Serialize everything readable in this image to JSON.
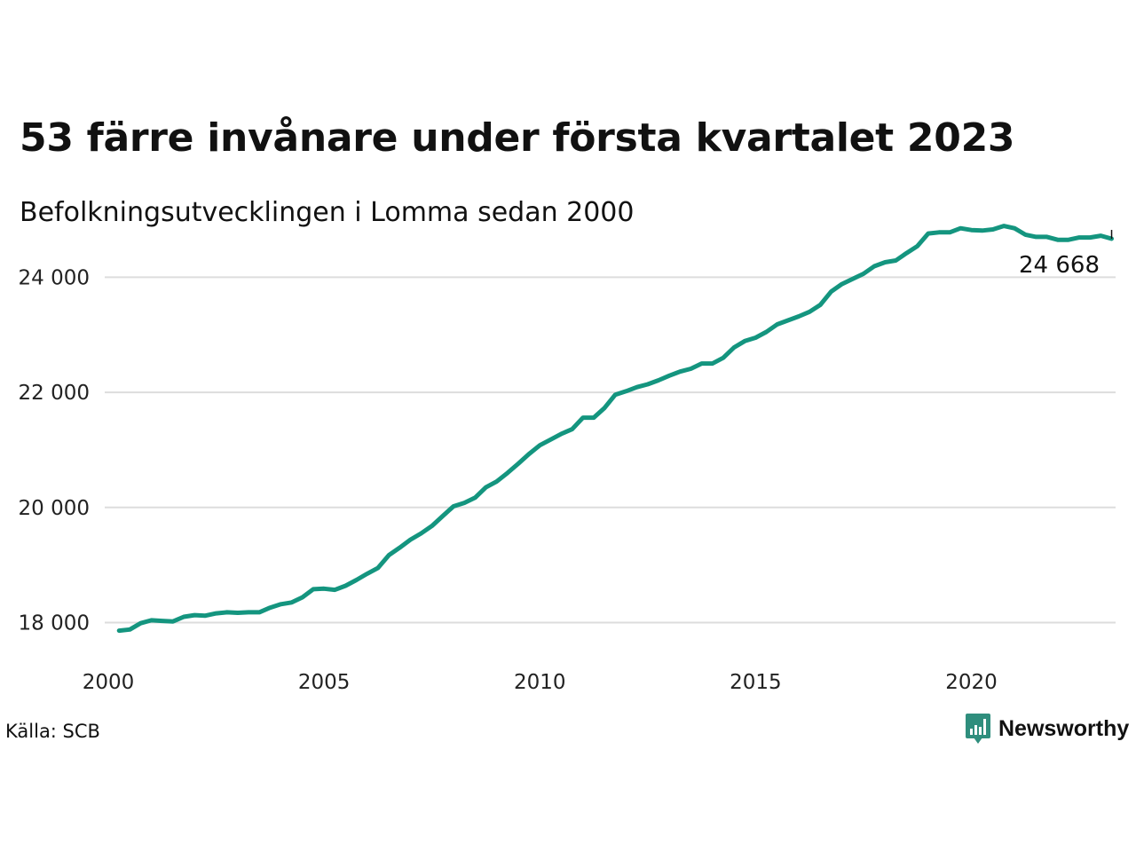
{
  "title": "53 färre invånare under första kvartalet 2023",
  "subtitle": "Befolkningsutvecklingen i Lomma sedan 2000",
  "source": "Källa: SCB",
  "brand": {
    "name": "Newsworthy",
    "color": "#2f8e7d",
    "icon": "newsworthy-logo-icon"
  },
  "end_label": "24 668",
  "colors": {
    "line": "#14957f",
    "grid": "#dddddd"
  },
  "chart_data": {
    "type": "line",
    "title": "53 färre invånare under första kvartalet 2023",
    "subtitle": "Befolkningsutvecklingen i Lomma sedan 2000",
    "xlabel": "",
    "ylabel": "",
    "xlim": [
      2000,
      2024
    ],
    "ylim": [
      17800,
      25100
    ],
    "x_ticks": [
      2000,
      2005,
      2010,
      2015,
      2020
    ],
    "x_tick_labels": [
      "2000",
      "2005",
      "2010",
      "2015",
      "2020"
    ],
    "y_ticks": [
      18000,
      20000,
      22000,
      24000
    ],
    "y_tick_labels": [
      "18 000",
      "20 000",
      "22 000",
      "24 000"
    ],
    "grid": "horizontal",
    "series": [
      {
        "x": [
          2000.25,
          2000.5,
          2000.75,
          2001.0,
          2001.25,
          2001.5,
          2001.75,
          2002.0,
          2002.25,
          2002.5,
          2002.75,
          2003.0,
          2003.25,
          2003.5,
          2003.75,
          2004.0,
          2004.25,
          2004.5,
          2004.75,
          2005.0,
          2005.25,
          2005.5,
          2005.75,
          2006.0,
          2006.25,
          2006.5,
          2006.75,
          2007.0,
          2007.25,
          2007.5,
          2007.75,
          2008.0,
          2008.25,
          2008.5,
          2008.75,
          2009.0,
          2009.25,
          2009.5,
          2009.75,
          2010.0,
          2010.25,
          2010.5,
          2010.75,
          2011.0,
          2011.25,
          2011.5,
          2011.75,
          2012.0,
          2012.25,
          2012.5,
          2012.75,
          2013.0,
          2013.25,
          2013.5,
          2013.75,
          2014.0,
          2014.25,
          2014.5,
          2014.75,
          2015.0,
          2015.25,
          2015.5,
          2015.75,
          2016.0,
          2016.25,
          2016.5,
          2016.75,
          2017.0,
          2017.25,
          2017.5,
          2017.75,
          2018.0,
          2018.25,
          2018.5,
          2018.75,
          2019.0,
          2019.25,
          2019.5,
          2019.75,
          2020.0,
          2020.25,
          2020.5,
          2020.75,
          2021.0,
          2021.25,
          2021.5,
          2021.75,
          2022.0,
          2022.25,
          2022.5,
          2022.75,
          2023.0,
          2023.25
        ],
        "values": [
          17860,
          17880,
          17990,
          18040,
          18030,
          18020,
          18100,
          18130,
          18120,
          18160,
          18180,
          18170,
          18180,
          18180,
          18260,
          18320,
          18350,
          18440,
          18580,
          18590,
          18570,
          18640,
          18740,
          18850,
          18950,
          19170,
          19300,
          19440,
          19550,
          19680,
          19850,
          20020,
          20080,
          20170,
          20350,
          20450,
          20600,
          20760,
          20930,
          21080,
          21180,
          21280,
          21360,
          21560,
          21560,
          21730,
          21960,
          22020,
          22090,
          22140,
          22210,
          22290,
          22360,
          22410,
          22500,
          22500,
          22600,
          22780,
          22890,
          22950,
          23050,
          23180,
          23250,
          23320,
          23400,
          23520,
          23750,
          23880,
          23970,
          24060,
          24190,
          24260,
          24290,
          24420,
          24540,
          24760,
          24780,
          24780,
          24850,
          24820,
          24810,
          24830,
          24890,
          24850,
          24740,
          24700,
          24700,
          24650,
          24650,
          24690,
          24690,
          24721,
          24668
        ]
      }
    ]
  }
}
